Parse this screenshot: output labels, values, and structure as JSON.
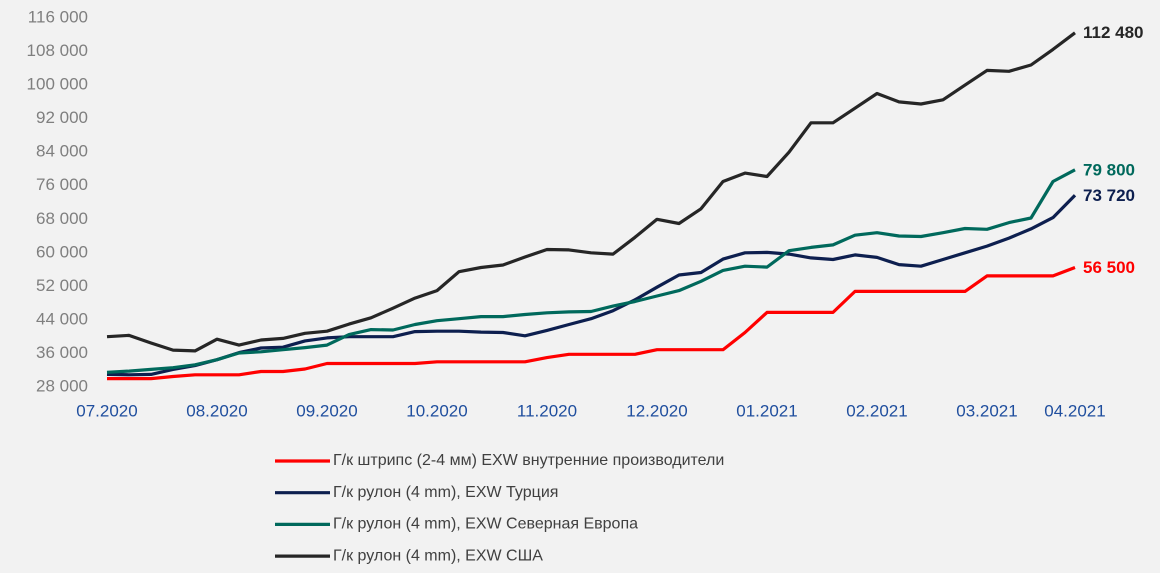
{
  "chart_data": {
    "type": "line",
    "categories": [
      "07.2020",
      null,
      null,
      null,
      null,
      "08.2020",
      null,
      null,
      null,
      null,
      "09.2020",
      null,
      null,
      null,
      null,
      "10.2020",
      null,
      null,
      null,
      null,
      "11.2020",
      null,
      null,
      null,
      null,
      "12.2020",
      null,
      null,
      null,
      null,
      "01.2021",
      null,
      null,
      null,
      null,
      "02.2021",
      null,
      null,
      null,
      null,
      "03.2021",
      null,
      null,
      null,
      "04.2021"
    ],
    "ylim": [
      28000,
      116000
    ],
    "yticks": [
      {
        "value": 28000,
        "label": "28 000"
      },
      {
        "value": 36000,
        "label": "36 000"
      },
      {
        "value": 44000,
        "label": "44 000"
      },
      {
        "value": 52000,
        "label": "52 000"
      },
      {
        "value": 60000,
        "label": "60 000"
      },
      {
        "value": 68000,
        "label": "68 000"
      },
      {
        "value": 76000,
        "label": "76 000"
      },
      {
        "value": 84000,
        "label": "84 000"
      },
      {
        "value": 92000,
        "label": "92 000"
      },
      {
        "value": 100000,
        "label": "100 000"
      },
      {
        "value": 108000,
        "label": "108 000"
      },
      {
        "value": 116000,
        "label": "116 000"
      }
    ],
    "grid": false,
    "legend": "bottom",
    "series": [
      {
        "name": "Г/к штрипс (2-4 мм) EXW внутренние производители",
        "color": "#ff0000",
        "values": [
          30000,
          30000,
          30000,
          30500,
          30900,
          30900,
          30900,
          31700,
          31700,
          32300,
          33600,
          33600,
          33600,
          33600,
          33600,
          34000,
          34000,
          34000,
          34000,
          34000,
          35000,
          35800,
          35800,
          35800,
          35800,
          36900,
          36900,
          36900,
          36900,
          41000,
          45800,
          45800,
          45800,
          45800,
          50800,
          50800,
          50800,
          50800,
          50800,
          50800,
          54500,
          54500,
          54500,
          54500,
          56500
        ],
        "value_labels": [
          null,
          null,
          null,
          null,
          null,
          null,
          null,
          null,
          null,
          null,
          null,
          null,
          null,
          null,
          null,
          null,
          null,
          null,
          null,
          null,
          null,
          null,
          null,
          null,
          null,
          null,
          null,
          null,
          null,
          null,
          null,
          null,
          null,
          null,
          null,
          null,
          null,
          null,
          null,
          null,
          null,
          null,
          null,
          null,
          "56 500"
        ]
      },
      {
        "name": "Г/к рулон (4 mm), EXW Турция",
        "color": "#0d1f4f",
        "values": [
          31000,
          30900,
          31000,
          32200,
          33100,
          34500,
          36200,
          37300,
          37500,
          39000,
          39700,
          40000,
          40000,
          40000,
          41200,
          41300,
          41300,
          41100,
          41000,
          40200,
          41500,
          42900,
          44300,
          46200,
          48800,
          51800,
          54700,
          55300,
          58500,
          60000,
          60100,
          59700,
          58800,
          58400,
          59500,
          58900,
          57200,
          56800,
          58400,
          60000,
          61600,
          63500,
          65700,
          68400,
          73720
        ],
        "value_labels": [
          null,
          null,
          null,
          null,
          null,
          null,
          null,
          null,
          null,
          null,
          null,
          null,
          null,
          null,
          null,
          null,
          null,
          null,
          null,
          null,
          null,
          null,
          null,
          null,
          null,
          null,
          null,
          null,
          null,
          null,
          null,
          null,
          null,
          null,
          null,
          null,
          null,
          null,
          null,
          null,
          null,
          null,
          null,
          null,
          "73 720"
        ]
      },
      {
        "name": "Г/к рулон (4 mm), EXW Северная Европа",
        "color": "#00695c",
        "values": [
          31500,
          31800,
          32200,
          32600,
          33300,
          34500,
          36100,
          36400,
          36900,
          37400,
          38000,
          40500,
          41700,
          41600,
          42900,
          43800,
          44300,
          44800,
          44800,
          45300,
          45700,
          45900,
          46000,
          47300,
          48400,
          49700,
          51000,
          53200,
          55800,
          56800,
          56600,
          60500,
          61300,
          61900,
          64200,
          64800,
          64000,
          63900,
          64800,
          65800,
          65600,
          67200,
          68300,
          77000,
          79800
        ],
        "value_labels": [
          null,
          null,
          null,
          null,
          null,
          null,
          null,
          null,
          null,
          null,
          null,
          null,
          null,
          null,
          null,
          null,
          null,
          null,
          null,
          null,
          null,
          null,
          null,
          null,
          null,
          null,
          null,
          null,
          null,
          null,
          null,
          null,
          null,
          null,
          null,
          null,
          null,
          null,
          null,
          null,
          null,
          null,
          null,
          null,
          "79 800"
        ]
      },
      {
        "name": "Г/к рулон (4 mm), EXW США",
        "color": "#262626",
        "values": [
          40000,
          40300,
          38500,
          36800,
          36600,
          39400,
          38000,
          39200,
          39600,
          40800,
          41300,
          43000,
          44500,
          46800,
          49200,
          51000,
          55500,
          56500,
          57100,
          59000,
          60800,
          60700,
          60000,
          59700,
          63700,
          68000,
          67000,
          70500,
          77000,
          79000,
          78200,
          84000,
          91000,
          91000,
          94500,
          98000,
          96000,
          95500,
          96500,
          100000,
          103500,
          103300,
          104800,
          108500,
          112480
        ],
        "value_labels": [
          null,
          null,
          null,
          null,
          null,
          null,
          null,
          null,
          null,
          null,
          null,
          null,
          null,
          null,
          null,
          null,
          null,
          null,
          null,
          null,
          null,
          null,
          null,
          null,
          null,
          null,
          null,
          null,
          null,
          null,
          null,
          null,
          null,
          null,
          null,
          null,
          null,
          null,
          null,
          null,
          null,
          null,
          null,
          null,
          "112 480"
        ]
      }
    ]
  }
}
